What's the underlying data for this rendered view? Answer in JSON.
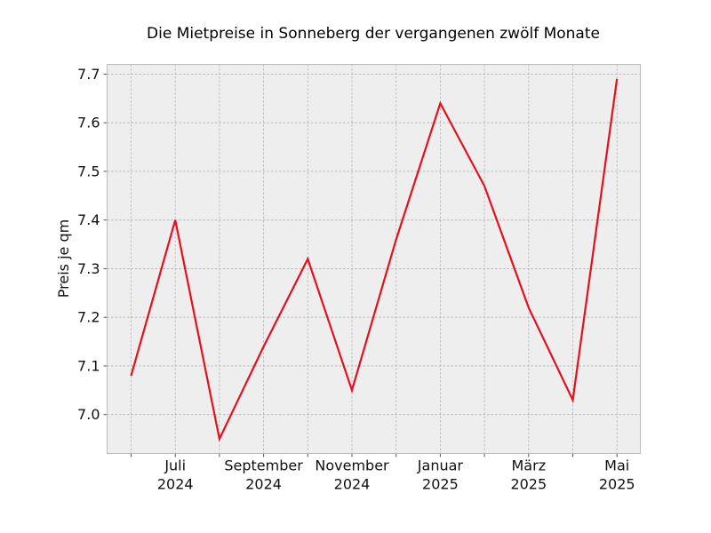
{
  "chart_data": {
    "type": "line",
    "title": "Die Mietpreise in Sonneberg der vergangenen zwölf Monate",
    "xlabel": "",
    "ylabel": "Preis je qm",
    "x": [
      "2024-06",
      "2024-07",
      "2024-08",
      "2024-09",
      "2024-10",
      "2024-11",
      "2024-12",
      "2025-01",
      "2025-02",
      "2025-03",
      "2025-04",
      "2025-05"
    ],
    "series": [
      {
        "values": [
          7.08,
          7.4,
          6.95,
          7.14,
          7.32,
          7.05,
          7.36,
          7.64,
          7.47,
          7.22,
          7.03,
          7.69
        ]
      }
    ],
    "ylim": [
      6.92,
      7.72
    ],
    "yticks": [
      7.0,
      7.1,
      7.2,
      7.3,
      7.4,
      7.5,
      7.6,
      7.7
    ],
    "ytick_labels": [
      "7.0",
      "7.1",
      "7.2",
      "7.3",
      "7.4",
      "7.5",
      "7.6",
      "7.7"
    ],
    "xtick_labels": [
      {
        "x": "2024-07",
        "month": "Juli",
        "year": "2024"
      },
      {
        "x": "2024-09",
        "month": "September",
        "year": "2024"
      },
      {
        "x": "2024-11",
        "month": "November",
        "year": "2024"
      },
      {
        "x": "2025-01",
        "month": "Januar",
        "year": "2025"
      },
      {
        "x": "2025-03",
        "month": "März",
        "year": "2025"
      },
      {
        "x": "2025-05",
        "month": "Mai",
        "year": "2025"
      }
    ],
    "grid": true,
    "colors": {
      "line": "#e3101e",
      "plot_background": "#eeeeee",
      "grid": "#b2b2b2",
      "frame": "#bcbcbc"
    }
  }
}
